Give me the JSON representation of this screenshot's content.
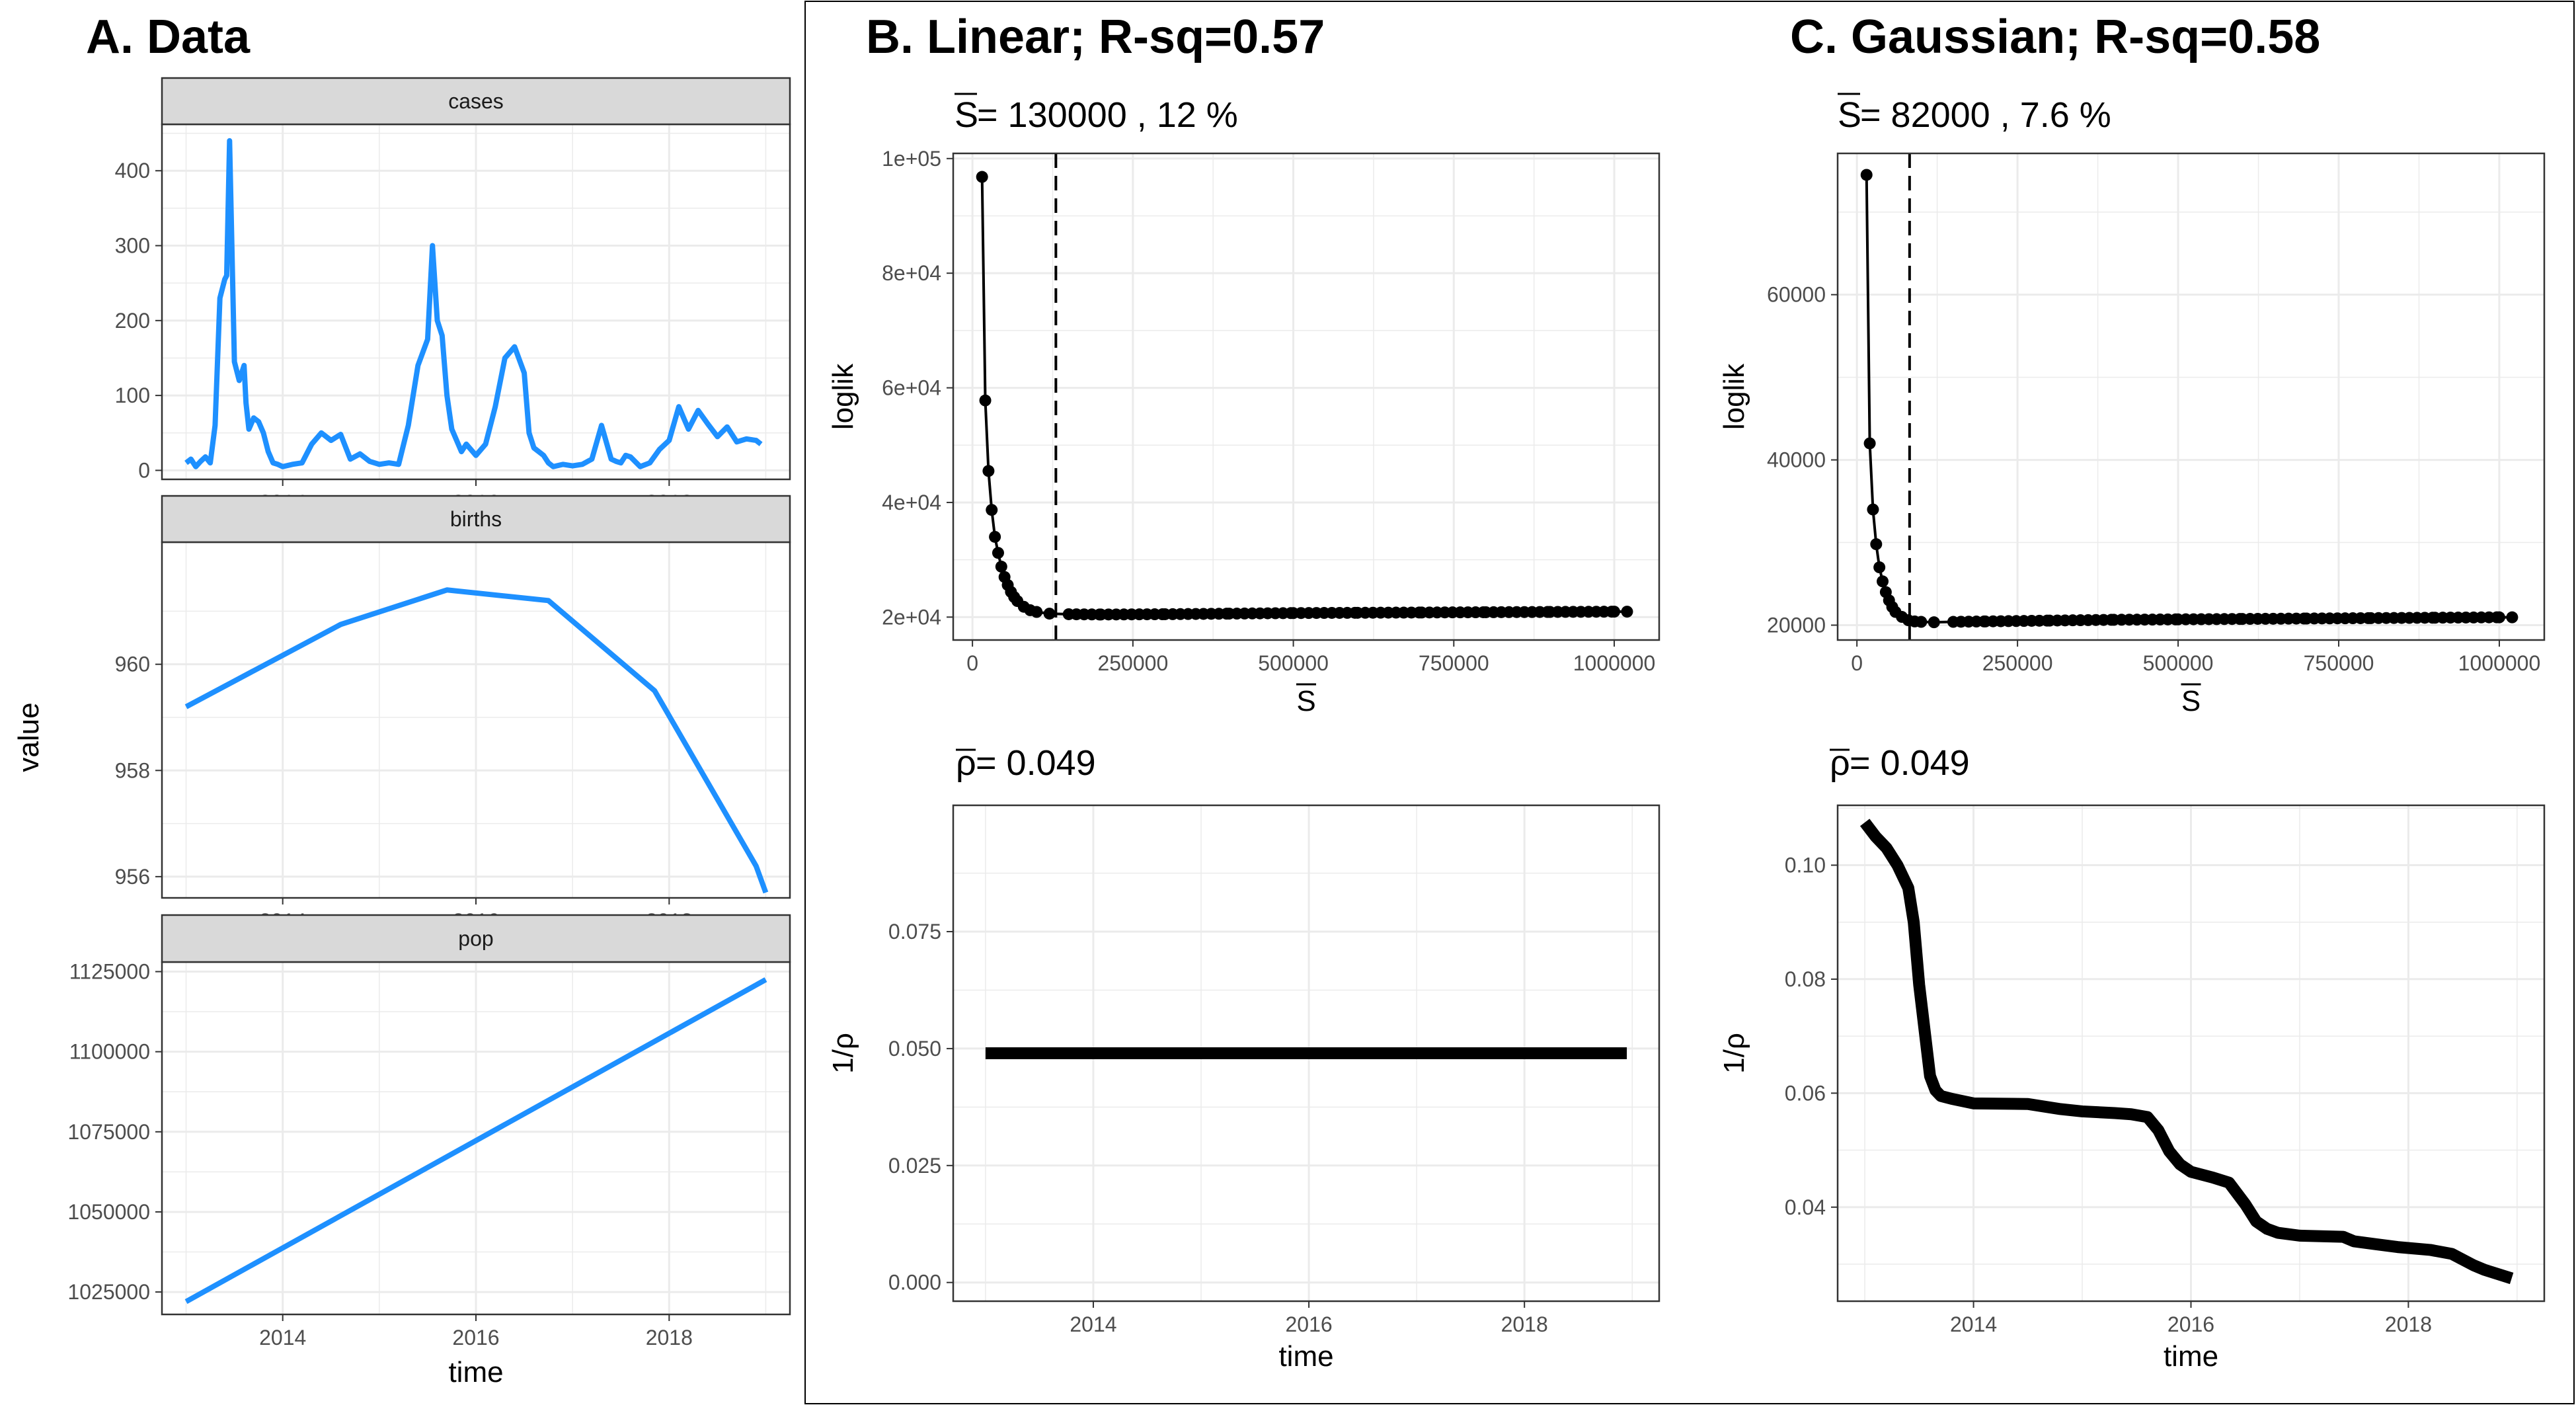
{
  "panels": {
    "A": {
      "title": "A. Data",
      "ylabel": "value",
      "xlabel": "time"
    },
    "B": {
      "title": "B. Linear; R-sq=0.57",
      "sbar_label": "S",
      "sbar_text": " = 130000 , 12 %",
      "rho_label": "ρ",
      "rho_text": " = 0.049"
    },
    "C": {
      "title": "C. Gaussian; R-sq=0.58",
      "sbar_label": "S",
      "sbar_text": " = 82000 , 7.6 %",
      "rho_label": "ρ",
      "rho_text": " = 0.049"
    }
  },
  "colors": {
    "series": "#1E90FF",
    "black": "#000000",
    "strip_bg": "#D9D9D9",
    "grid": "#EBEBEB"
  },
  "chart_data": [
    {
      "id": "cases",
      "type": "line",
      "strip": "cases",
      "xlabel": "",
      "ylabel": "value",
      "xticks": [
        2014,
        2016,
        2018
      ],
      "yticks": [
        0,
        100,
        200,
        300,
        400
      ],
      "ylim": [
        -12,
        462
      ],
      "xlim": [
        2012.75,
        2019.25
      ],
      "x": [
        2013.0,
        2013.05,
        2013.1,
        2013.15,
        2013.2,
        2013.25,
        2013.3,
        2013.35,
        2013.4,
        2013.42,
        2013.45,
        2013.5,
        2013.55,
        2013.6,
        2013.62,
        2013.65,
        2013.7,
        2013.75,
        2013.8,
        2013.85,
        2013.9,
        2013.95,
        2014.0,
        2014.1,
        2014.2,
        2014.3,
        2014.4,
        2014.5,
        2014.6,
        2014.7,
        2014.8,
        2014.9,
        2015.0,
        2015.1,
        2015.2,
        2015.3,
        2015.4,
        2015.5,
        2015.55,
        2015.6,
        2015.65,
        2015.7,
        2015.75,
        2015.8,
        2015.85,
        2015.9,
        2016.0,
        2016.1,
        2016.2,
        2016.3,
        2016.4,
        2016.5,
        2016.55,
        2016.6,
        2016.65,
        2016.7,
        2016.75,
        2016.8,
        2016.9,
        2017.0,
        2017.1,
        2017.2,
        2017.3,
        2017.4,
        2017.45,
        2017.5,
        2017.55,
        2017.6,
        2017.7,
        2017.8,
        2017.9,
        2018.0,
        2018.1,
        2018.2,
        2018.3,
        2018.4,
        2018.5,
        2018.6,
        2018.7,
        2018.8,
        2018.9,
        2018.95
      ],
      "y": [
        10,
        15,
        5,
        12,
        18,
        10,
        60,
        230,
        255,
        260,
        440,
        145,
        120,
        140,
        90,
        55,
        70,
        65,
        50,
        25,
        10,
        8,
        5,
        8,
        10,
        35,
        50,
        40,
        48,
        15,
        22,
        12,
        8,
        10,
        8,
        60,
        140,
        175,
        300,
        200,
        180,
        100,
        55,
        40,
        25,
        35,
        20,
        35,
        85,
        150,
        165,
        130,
        50,
        30,
        25,
        20,
        10,
        5,
        8,
        6,
        8,
        15,
        60,
        15,
        12,
        10,
        20,
        18,
        5,
        10,
        28,
        40,
        85,
        55,
        80,
        62,
        45,
        58,
        38,
        42,
        40,
        35
      ],
      "color": "#1E90FF"
    },
    {
      "id": "births",
      "type": "line",
      "strip": "births",
      "xlabel": "",
      "ylabel": "value",
      "xticks": [
        2014,
        2016,
        2018
      ],
      "yticks": [
        956,
        958,
        960
      ],
      "ylim": [
        955.6,
        962.3
      ],
      "xlim": [
        2012.75,
        2019.25
      ],
      "x": [
        2013.0,
        2014.6,
        2015.7,
        2016.75,
        2017.85,
        2018.9,
        2019.0
      ],
      "y": [
        959.2,
        960.75,
        961.4,
        961.2,
        959.5,
        956.2,
        955.7
      ],
      "color": "#1E90FF"
    },
    {
      "id": "pop",
      "type": "line",
      "strip": "pop",
      "xlabel": "time",
      "ylabel": "value",
      "xticks": [
        2014,
        2016,
        2018
      ],
      "yticks": [
        1025000,
        1050000,
        1075000,
        1100000,
        1125000
      ],
      "ylim": [
        1018000,
        1128000
      ],
      "xlim": [
        2012.75,
        2019.25
      ],
      "x": [
        2013.0,
        2019.0
      ],
      "y": [
        1022000,
        1122500
      ],
      "color": "#1E90FF"
    },
    {
      "id": "B_top",
      "type": "scatter",
      "xlabel": "S",
      "ylabel": "loglik",
      "xticks": [
        0,
        250000,
        500000,
        750000,
        1000000
      ],
      "xtick_labels": [
        "0",
        "250000",
        "500000",
        "750000",
        "1000000"
      ],
      "yticks": [
        20000,
        40000,
        60000,
        80000,
        100000
      ],
      "ytick_labels": [
        "2e+04",
        "4e+04",
        "6e+04",
        "8e+04",
        "1e+05"
      ],
      "xlim": [
        -30000,
        1070000
      ],
      "ylim": [
        16000,
        100900
      ],
      "vline": 130000,
      "points_x": [
        15000,
        20000,
        25000,
        30000,
        35000,
        40000,
        45000,
        50000,
        55000,
        60000,
        65000,
        70000,
        80000,
        90000,
        100000,
        120000,
        150000,
        200000,
        300000,
        400000,
        500000,
        600000,
        700000,
        800000,
        900000,
        1000000,
        1020000
      ],
      "points_y": [
        96800,
        57800,
        45500,
        38700,
        34000,
        31200,
        28800,
        27000,
        25600,
        24400,
        23500,
        22800,
        21800,
        21200,
        20900,
        20600,
        20500,
        20450,
        20500,
        20600,
        20700,
        20750,
        20800,
        20850,
        20900,
        20950,
        20950
      ],
      "color": "#000000"
    },
    {
      "id": "B_bottom",
      "type": "line",
      "xlabel": "time",
      "ylabel": "1/ρ",
      "xticks": [
        2014,
        2016,
        2018
      ],
      "yticks": [
        0.0,
        0.025,
        0.05,
        0.075
      ],
      "ytick_labels": [
        "0.000",
        "0.025",
        "0.050",
        "0.075"
      ],
      "xlim": [
        2012.7,
        2019.25
      ],
      "ylim": [
        -0.004,
        0.102
      ],
      "x": [
        2013.0,
        2018.95
      ],
      "y": [
        0.049,
        0.049
      ],
      "color": "#000000"
    },
    {
      "id": "C_top",
      "type": "scatter",
      "xlabel": "S",
      "ylabel": "loglik",
      "xticks": [
        0,
        250000,
        500000,
        750000,
        1000000
      ],
      "xtick_labels": [
        "0",
        "250000",
        "500000",
        "750000",
        "1000000"
      ],
      "yticks": [
        20000,
        40000,
        60000
      ],
      "ytick_labels": [
        "20000",
        "40000",
        "60000"
      ],
      "xlim": [
        -30000,
        1070000
      ],
      "ylim": [
        18200,
        77100
      ],
      "vline": 82000,
      "points_x": [
        15000,
        20000,
        25000,
        30000,
        35000,
        40000,
        45000,
        50000,
        55000,
        60000,
        70000,
        80000,
        90000,
        100000,
        120000,
        150000,
        200000,
        300000,
        400000,
        500000,
        600000,
        700000,
        800000,
        900000,
        1000000,
        1020000
      ],
      "points_y": [
        74500,
        42000,
        34000,
        29800,
        27000,
        25300,
        24000,
        23000,
        22200,
        21600,
        21000,
        20600,
        20450,
        20400,
        20350,
        20400,
        20450,
        20550,
        20650,
        20700,
        20750,
        20800,
        20850,
        20900,
        20950,
        20950
      ],
      "color": "#000000"
    },
    {
      "id": "C_bottom",
      "type": "line",
      "xlabel": "time",
      "ylabel": "1/ρ",
      "xticks": [
        2014,
        2016,
        2018
      ],
      "yticks": [
        0.04,
        0.06,
        0.08,
        0.1
      ],
      "ytick_labels": [
        "0.04",
        "0.06",
        "0.08",
        "0.10"
      ],
      "xlim": [
        2012.75,
        2019.25
      ],
      "ylim": [
        0.0235,
        0.1105
      ],
      "x": [
        2013.0,
        2013.1,
        2013.2,
        2013.3,
        2013.4,
        2013.45,
        2013.5,
        2013.55,
        2013.6,
        2013.65,
        2013.7,
        2013.8,
        2014.0,
        2014.5,
        2014.8,
        2015.0,
        2015.3,
        2015.45,
        2015.6,
        2015.7,
        2015.8,
        2015.9,
        2016.0,
        2016.2,
        2016.35,
        2016.5,
        2016.6,
        2016.7,
        2016.8,
        2017.0,
        2017.4,
        2017.5,
        2017.7,
        2017.9,
        2018.2,
        2018.4,
        2018.6,
        2018.7,
        2018.95
      ],
      "y": [
        0.1075,
        0.105,
        0.103,
        0.1,
        0.096,
        0.09,
        0.079,
        0.071,
        0.063,
        0.0605,
        0.0595,
        0.059,
        0.0582,
        0.0581,
        0.0572,
        0.0568,
        0.0565,
        0.0563,
        0.0558,
        0.0535,
        0.0498,
        0.0475,
        0.0462,
        0.0452,
        0.0443,
        0.0405,
        0.0375,
        0.0362,
        0.0355,
        0.035,
        0.0348,
        0.034,
        0.0335,
        0.033,
        0.0325,
        0.0318,
        0.0298,
        0.029,
        0.0275
      ],
      "color": "#000000"
    }
  ]
}
